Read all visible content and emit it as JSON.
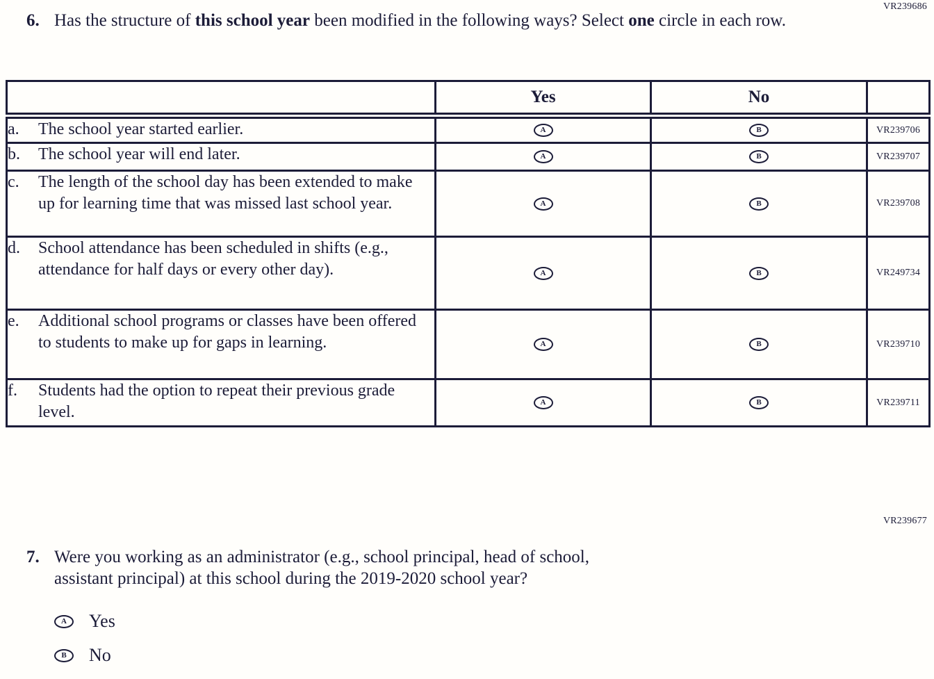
{
  "q6": {
    "code": "VR239686",
    "number": "6.",
    "line1_pre": "Has the structure of ",
    "line1_bold1": "this school year",
    "line1_mid": " been modified in the following ways? Select ",
    "line1_bold2": "one",
    "line2": " circle in each row.",
    "table": {
      "col_yes": "Yes",
      "col_no": "No",
      "rows": [
        {
          "letter": "a.",
          "text": "The school year started earlier.",
          "yes_letter": "A",
          "no_letter": "B",
          "code": "VR239706"
        },
        {
          "letter": "b.",
          "text": "The school year will end later.",
          "yes_letter": "A",
          "no_letter": "B",
          "code": "VR239707"
        },
        {
          "letter": "c.",
          "text": "The length of the school day has been extended to make up for learning time that was missed last school year.",
          "yes_letter": "A",
          "no_letter": "B",
          "code": "VR239708"
        },
        {
          "letter": "d.",
          "text": "School attendance has been scheduled in shifts (e.g., attendance for half days or every other day).",
          "yes_letter": "A",
          "no_letter": "B",
          "code": "VR249734"
        },
        {
          "letter": "e.",
          "text": "Additional school programs or classes have been offered to students to make up for gaps in learning.",
          "yes_letter": "A",
          "no_letter": "B",
          "code": "VR239710"
        },
        {
          "letter": "f.",
          "text": "Students had the option to repeat their previous grade level.",
          "yes_letter": "A",
          "no_letter": "B",
          "code": "VR239711"
        }
      ]
    }
  },
  "q7": {
    "code": "VR239677",
    "number": "7.",
    "line1": "Were you working as an administrator (e.g., school principal, head of school,",
    "line2": "assistant principal) at this school during the 2019-2020 school year?",
    "options": [
      {
        "letter": "A",
        "label": "Yes"
      },
      {
        "letter": "B",
        "label": "No"
      }
    ]
  }
}
